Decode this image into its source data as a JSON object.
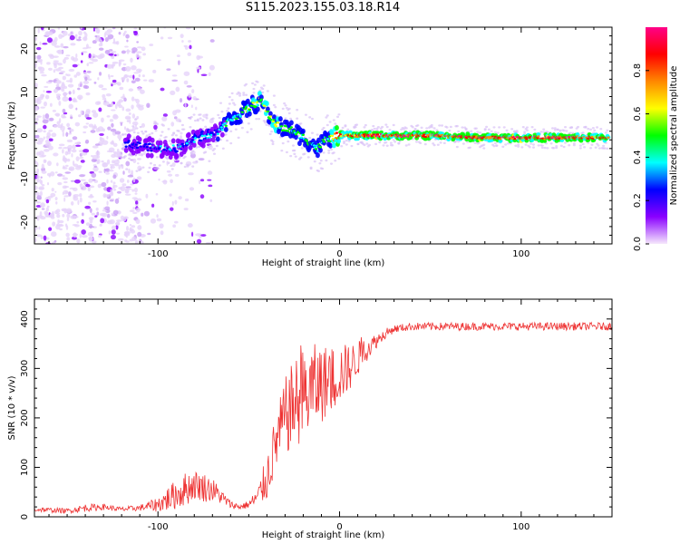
{
  "title": "S115.2023.155.03.18.R14",
  "chart_data": [
    {
      "type": "heatmap",
      "xlabel": "Height of straight line (km)",
      "ylabel": "Frequency (Hz)",
      "xlim": [
        -168,
        150
      ],
      "ylim": [
        -25,
        25
      ],
      "x_ticks": [
        -100,
        0,
        100
      ],
      "y_ticks": [
        -20,
        -10,
        0,
        10,
        20
      ],
      "colorbar": {
        "label": "Normalized spectral amplitude",
        "range": [
          0,
          1
        ],
        "ticks": [
          0.0,
          0.2,
          0.4,
          0.6,
          0.8
        ],
        "colormap": [
          "#f6e8fc",
          "#8a00ff",
          "#0000ff",
          "#00ffff",
          "#00ff00",
          "#ffff00",
          "#ff8800",
          "#ff0000",
          "#ff0088"
        ]
      },
      "ridge": {
        "x": [
          -115,
          -100,
          -90,
          -80,
          -70,
          -62,
          -55,
          -48,
          -43,
          -38,
          -33,
          -25,
          -18,
          -12,
          -8,
          0,
          20,
          50,
          80,
          110,
          130,
          148
        ],
        "y": [
          -2,
          -3,
          -3,
          -1,
          0,
          3,
          5,
          7,
          8,
          4,
          2,
          1,
          -1,
          -3,
          -1,
          0,
          0,
          0,
          -0.5,
          -0.5,
          -0.5,
          -0.5
        ],
        "amplitude": [
          0.25,
          0.3,
          0.3,
          0.35,
          0.35,
          0.45,
          0.5,
          0.55,
          0.55,
          0.6,
          0.55,
          0.5,
          0.5,
          0.45,
          0.5,
          0.85,
          0.95,
          0.9,
          0.95,
          0.95,
          0.9,
          0.85
        ]
      },
      "noise_region": {
        "x_from": -168,
        "x_to": -110
      }
    },
    {
      "type": "line",
      "xlabel": "Height of straight line (km)",
      "ylabel": "SNR (10 * v/v)",
      "xlim": [
        -168,
        150
      ],
      "ylim": [
        0,
        440
      ],
      "x_ticks": [
        -100,
        0,
        100
      ],
      "y_ticks": [
        0,
        100,
        200,
        300,
        400
      ],
      "color": "#ee3333",
      "series": [
        {
          "x": [
            -168,
            -150,
            -140,
            -130,
            -120,
            -110,
            -100,
            -95,
            -90,
            -85,
            -80,
            -75,
            -70,
            -65,
            -60,
            -55,
            -50,
            -45,
            -40,
            -35,
            -30,
            -25,
            -20,
            -15,
            -10,
            -5,
            0,
            5,
            10,
            15,
            20,
            25,
            30,
            40,
            50,
            60,
            80,
            100,
            120,
            150
          ],
          "y": [
            15,
            12,
            18,
            20,
            15,
            18,
            25,
            35,
            45,
            55,
            65,
            60,
            55,
            40,
            25,
            20,
            25,
            40,
            80,
            150,
            200,
            230,
            240,
            260,
            270,
            275,
            290,
            300,
            320,
            340,
            355,
            370,
            380,
            385,
            385,
            385,
            385,
            385,
            385,
            385
          ],
          "noise": [
            5,
            5,
            8,
            6,
            5,
            6,
            15,
            25,
            30,
            35,
            30,
            30,
            25,
            15,
            8,
            6,
            8,
            20,
            50,
            60,
            80,
            90,
            100,
            90,
            80,
            70,
            60,
            50,
            35,
            25,
            15,
            10,
            8,
            8,
            8,
            8,
            8,
            8,
            8,
            8
          ]
        }
      ]
    }
  ]
}
